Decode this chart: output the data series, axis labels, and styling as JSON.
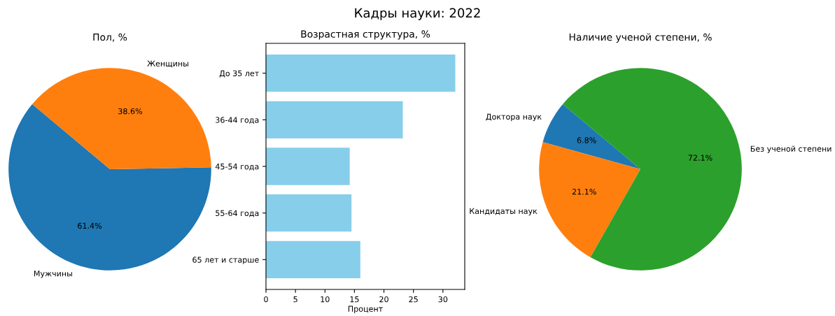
{
  "chart_data": [
    {
      "type": "other",
      "title": "Кадры науки: 2022"
    },
    {
      "type": "pie",
      "title": "Пол, %",
      "categories": [
        "Мужчины",
        "Женщины"
      ],
      "values": [
        61.4,
        38.6
      ],
      "colors": [
        "#1f77b4",
        "#ff7f0e"
      ],
      "value_labels": [
        "61.4%",
        "38.6%"
      ]
    },
    {
      "type": "bar",
      "orientation": "horizontal",
      "title": "Возрастная структура, %",
      "xlabel": "Процент",
      "categories": [
        "До 35 лет",
        "36-44 года",
        "45-54 года",
        "55-64 года",
        "65 лет и старше"
      ],
      "values": [
        32.1,
        23.2,
        14.2,
        14.5,
        16.0
      ],
      "color": "#87ceeb",
      "xlim": [
        0,
        33.7
      ],
      "xticks": [
        0,
        5,
        10,
        15,
        20,
        25,
        30
      ],
      "grid": false
    },
    {
      "type": "pie",
      "title": "Наличие ученой степени, %",
      "categories": [
        "Доктора наук",
        "Кандидаты наук",
        "Без ученой степени"
      ],
      "values": [
        6.8,
        21.1,
        72.1
      ],
      "colors": [
        "#1f77b4",
        "#ff7f0e",
        "#2ca02c"
      ],
      "value_labels": [
        "6.8%",
        "21.1%",
        "72.1%"
      ]
    }
  ]
}
